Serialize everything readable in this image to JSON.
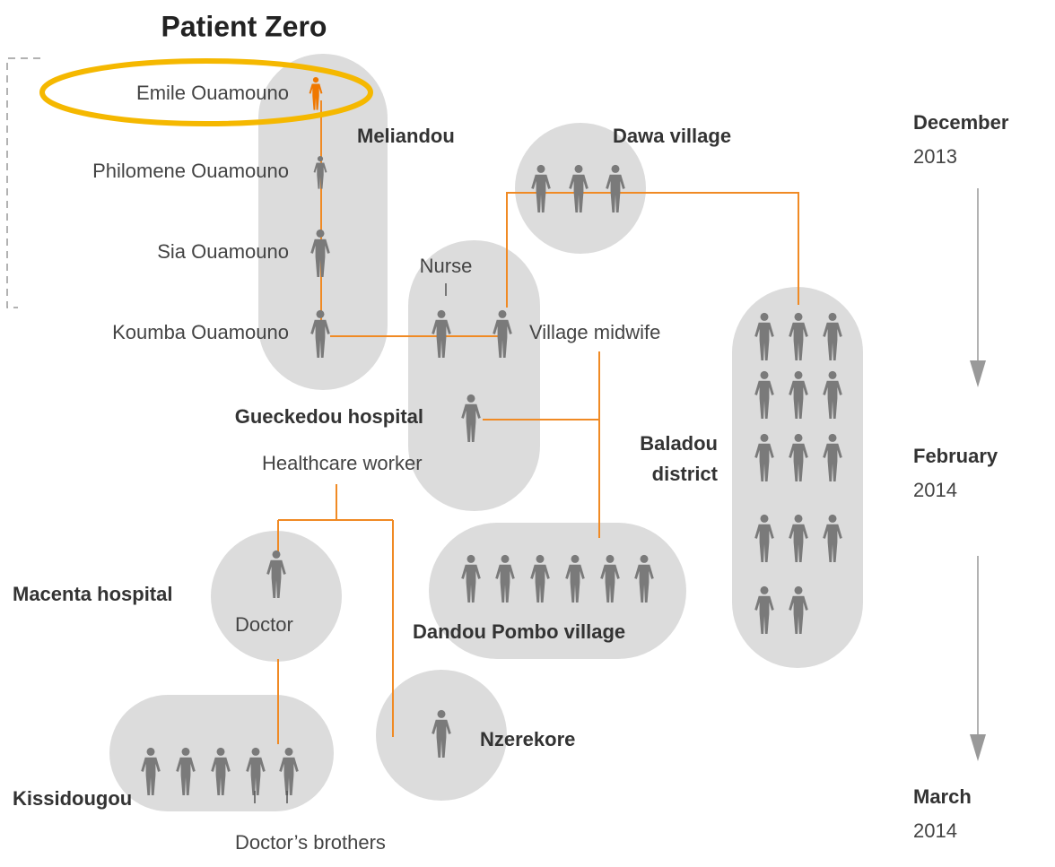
{
  "title": "Patient Zero",
  "people": [
    {
      "name": "Emile Ouamouno"
    },
    {
      "name": "Philomene Ouamouno"
    },
    {
      "name": "Sia Ouamouno"
    },
    {
      "name": "Koumba Ouamouno"
    }
  ],
  "places": [
    {
      "name": "Meliandou"
    },
    {
      "name": "Dawa village"
    },
    {
      "name": "Gueckedou hospital"
    },
    {
      "name": "Baladou",
      "name2": "district"
    },
    {
      "name": "Macenta hospital"
    },
    {
      "name": "Dandou Pombo village"
    },
    {
      "name": "Nzerekore"
    },
    {
      "name": "Kissidougou"
    }
  ],
  "roles": [
    {
      "label": "Nurse"
    },
    {
      "label": "Village midwife"
    },
    {
      "label": "Healthcare worker"
    },
    {
      "label": "Doctor"
    },
    {
      "label": "Doctor’s brothers"
    }
  ],
  "timeline": [
    {
      "month": "December",
      "year": "2013"
    },
    {
      "month": "February",
      "year": "2014"
    },
    {
      "month": "March",
      "year": "2014"
    }
  ]
}
